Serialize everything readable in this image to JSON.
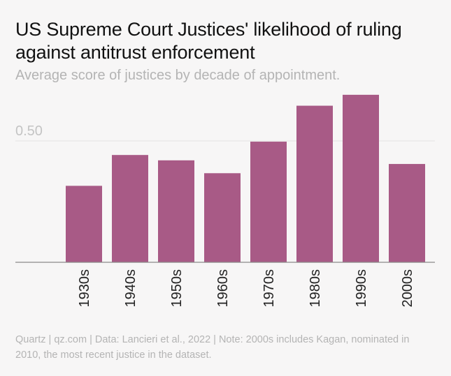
{
  "title": "US Supreme Court Justices' likelihood of ruling against antitrust enforcement",
  "subtitle": "Average score of justices by decade of appointment.",
  "footer": "Quartz | qz.com | Data: Lancieri et al., 2022 | Note: 2000s includes Kagan, nominated in 2010, the most recent justice in the dataset.",
  "colors": {
    "bar": "#a85a86",
    "gridline": "#e3e1e2",
    "axis": "#8a8a8a",
    "tick_text": "#c4c4c4",
    "label_text": "#222222"
  },
  "chart_data": {
    "type": "bar",
    "title": "US Supreme Court Justices' likelihood of ruling against antitrust enforcement",
    "subtitle": "Average score of justices by decade of appointment.",
    "categories": [
      "1930s",
      "1940s",
      "1950s",
      "1960s",
      "1970s",
      "1980s",
      "1990s",
      "2000s"
    ],
    "values": [
      0.315,
      0.442,
      0.42,
      0.367,
      0.497,
      0.645,
      0.69,
      0.405
    ],
    "ylim": [
      0,
      0.7
    ],
    "yticks": [
      0.5
    ],
    "ytick_labels": [
      "0.50"
    ],
    "xlabel": "",
    "ylabel": "",
    "grid": true,
    "legend": "none"
  }
}
